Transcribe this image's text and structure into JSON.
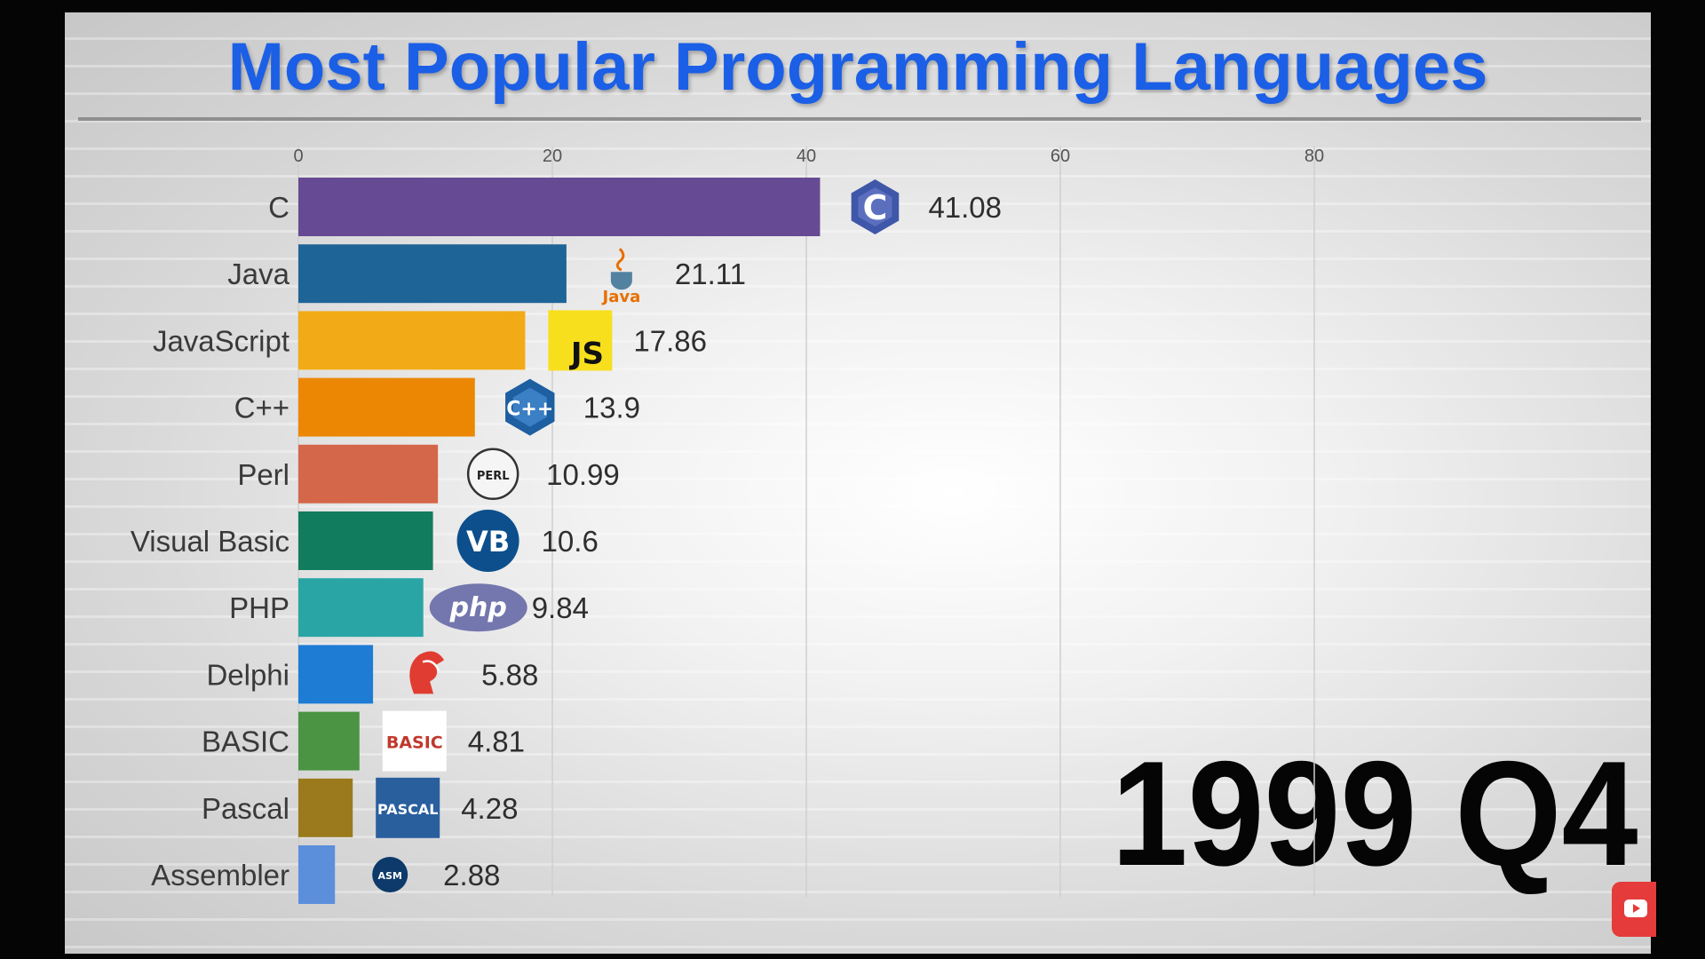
{
  "chart_data": {
    "type": "bar",
    "orientation": "horizontal",
    "title": "Most Popular Programming Languages",
    "period": "1999 Q4",
    "xlim": [
      0,
      100
    ],
    "ticks": [
      0,
      20,
      40,
      60,
      80
    ],
    "grid": true,
    "categories": [
      "C",
      "Java",
      "JavaScript",
      "C++",
      "Perl",
      "Visual Basic",
      "PHP",
      "Delphi",
      "BASIC",
      "Pascal",
      "Assembler"
    ],
    "values": [
      41.08,
      21.11,
      17.86,
      13.9,
      10.99,
      10.6,
      9.84,
      5.88,
      4.81,
      4.28,
      2.88
    ],
    "colors": [
      "#664a93",
      "#1f6496",
      "#f2ab16",
      "#ec8704",
      "#d4674a",
      "#127c5e",
      "#2aa5a6",
      "#1f7cd4",
      "#4a9444",
      "#9a7a1c",
      "#5b8fdc"
    ],
    "logos": [
      {
        "icon": "c-hexagon-icon",
        "text": "C"
      },
      {
        "icon": "java-cup-icon",
        "text": "Java"
      },
      {
        "icon": "js-square-icon",
        "text": "JS"
      },
      {
        "icon": "cpp-hexagon-icon",
        "text": "C++"
      },
      {
        "icon": "perl-onion-icon",
        "text": "PERL"
      },
      {
        "icon": "vb-circle-icon",
        "text": "VB"
      },
      {
        "icon": "php-ellipse-icon",
        "text": "php"
      },
      {
        "icon": "delphi-helmet-icon",
        "text": ""
      },
      {
        "icon": "basic-logo-icon",
        "text": "BASIC"
      },
      {
        "icon": "pascal-logo-icon",
        "text": "PASCAL"
      },
      {
        "icon": "asm-circle-icon",
        "text": "ASM"
      }
    ]
  },
  "colors": {
    "title": "#1b5fe6",
    "youtube": "#e53b3b"
  }
}
